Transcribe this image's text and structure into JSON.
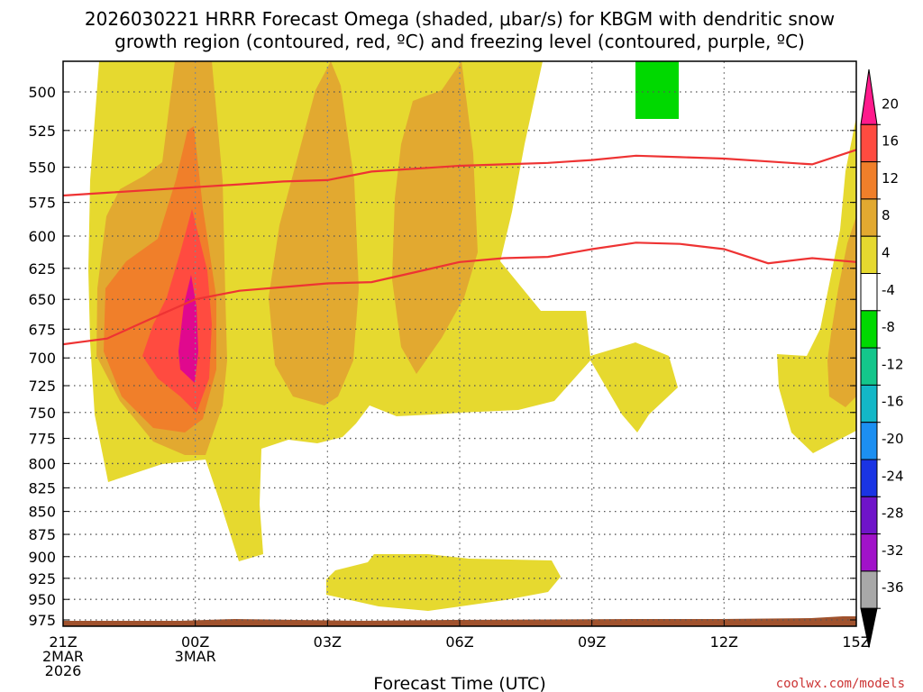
{
  "chart_data": {
    "type": "contour",
    "title_line1": "2026030221 HRRR Forecast Omega (shaded, μbar/s) for KBGM with dendritic snow",
    "title_line2": "growth region (contoured, red, ºC) and freezing level (contoured, purple, ºC)",
    "xlabel": "Forecast Time (UTC)",
    "credit": "coolwx.com/models",
    "x_range_hours": [
      0,
      18
    ],
    "x_ticks": [
      {
        "h": 0,
        "lines": [
          "21Z",
          "2MAR",
          "2026"
        ]
      },
      {
        "h": 3,
        "lines": [
          "00Z",
          "3MAR"
        ]
      },
      {
        "h": 6,
        "lines": [
          "03Z"
        ]
      },
      {
        "h": 9,
        "lines": [
          "06Z"
        ]
      },
      {
        "h": 12,
        "lines": [
          "09Z"
        ]
      },
      {
        "h": 15,
        "lines": [
          "12Z"
        ]
      },
      {
        "h": 18,
        "lines": [
          "15Z"
        ]
      }
    ],
    "y_levels_hpa": [
      "500",
      "525",
      "550",
      "575",
      "600",
      "625",
      "650",
      "675",
      "700",
      "725",
      "750",
      "775",
      "800",
      "825",
      "850",
      "875",
      "900",
      "925",
      "950",
      "975"
    ],
    "colorbar_labels": [
      "20",
      "16",
      "12",
      "8",
      "4",
      "-4",
      "-8",
      "-12",
      "-16",
      "-20",
      "-24",
      "-28",
      "-32",
      "-36"
    ],
    "colorbar_colors": [
      "#ff1a8c",
      "#ff4b40",
      "#f07f2a",
      "#e2a930",
      "#e6d92f",
      "#ffffff",
      "#00d900",
      "#14c68b",
      "#13b7c7",
      "#1c8ff1",
      "#1a34e4",
      "#6f14c9",
      "#a112c9",
      "#a8a8a8",
      "#000000"
    ],
    "shading_colors": {
      "4-8": "#e6d92f",
      "8-12": "#e2a930",
      "12-16": "#f07f2a",
      "16-20": "#ff4b40",
      "20+": "#e0088e",
      "-8": "#00d900",
      "terrain": "#a0522d"
    },
    "dgz_upper_hpa": [
      [
        0,
        570
      ],
      [
        1,
        568
      ],
      [
        2,
        566
      ],
      [
        3,
        564
      ],
      [
        4,
        562
      ],
      [
        5,
        560
      ],
      [
        6,
        559
      ],
      [
        7,
        553
      ],
      [
        8,
        551
      ],
      [
        9,
        549
      ],
      [
        10,
        548
      ],
      [
        11,
        547
      ],
      [
        12,
        545
      ],
      [
        13,
        542
      ],
      [
        14,
        543
      ],
      [
        15,
        544
      ],
      [
        16,
        546
      ],
      [
        17,
        548
      ],
      [
        18,
        538
      ]
    ],
    "dgz_lower_hpa": [
      [
        0,
        688
      ],
      [
        1,
        683
      ],
      [
        2,
        666
      ],
      [
        3,
        650
      ],
      [
        4,
        643
      ],
      [
        5,
        640
      ],
      [
        6,
        637
      ],
      [
        7,
        636
      ],
      [
        8,
        628
      ],
      [
        9,
        620
      ],
      [
        10,
        617
      ],
      [
        11,
        616
      ],
      [
        12,
        610
      ],
      [
        13,
        605
      ],
      [
        14,
        606
      ],
      [
        15,
        610
      ],
      [
        16,
        621
      ],
      [
        17,
        617
      ],
      [
        18,
        620
      ]
    ]
  }
}
